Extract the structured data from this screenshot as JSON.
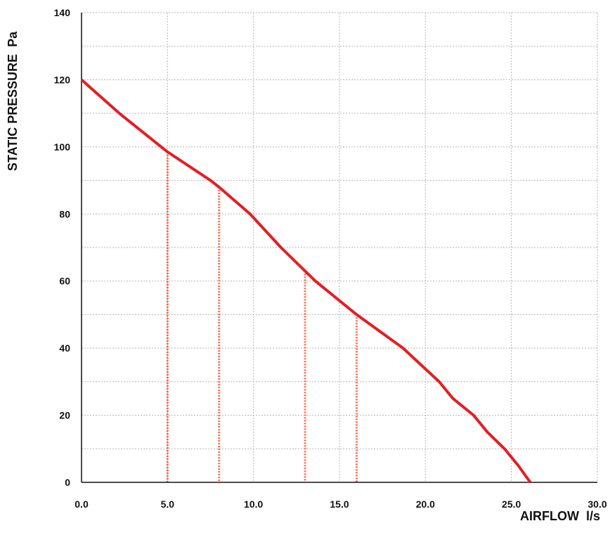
{
  "chart_data": {
    "type": "line",
    "title": "",
    "xlabel": "AIRFLOW  l/s",
    "ylabel": "STATIC PRESSURE  Pa",
    "xlim": [
      0,
      30
    ],
    "ylim": [
      0,
      140
    ],
    "x_ticks": [
      "0.0",
      "5.0",
      "10.0",
      "15.0",
      "20.0",
      "25.0",
      "30.0"
    ],
    "y_ticks": [
      "0",
      "20",
      "40",
      "60",
      "80",
      "100",
      "120",
      "140"
    ],
    "grid": true,
    "legend": "none",
    "series": [
      {
        "color": "#e31e24",
        "points": [
          [
            0.0,
            120
          ],
          [
            2.2,
            110
          ],
          [
            5.0,
            98.5
          ],
          [
            7.5,
            90
          ],
          [
            8.0,
            88
          ],
          [
            9.8,
            80
          ],
          [
            11.6,
            70
          ],
          [
            13.0,
            63
          ],
          [
            13.6,
            60
          ],
          [
            16.0,
            50
          ],
          [
            18.7,
            40
          ],
          [
            20.8,
            30
          ],
          [
            21.6,
            25
          ],
          [
            22.8,
            20
          ],
          [
            23.6,
            15
          ],
          [
            24.6,
            10
          ],
          [
            25.4,
            5
          ],
          [
            26.1,
            0
          ]
        ]
      }
    ],
    "reference_lines": {
      "color": "#f26b4f",
      "x": [
        5.0,
        8.0,
        13.0,
        16.0
      ]
    }
  }
}
